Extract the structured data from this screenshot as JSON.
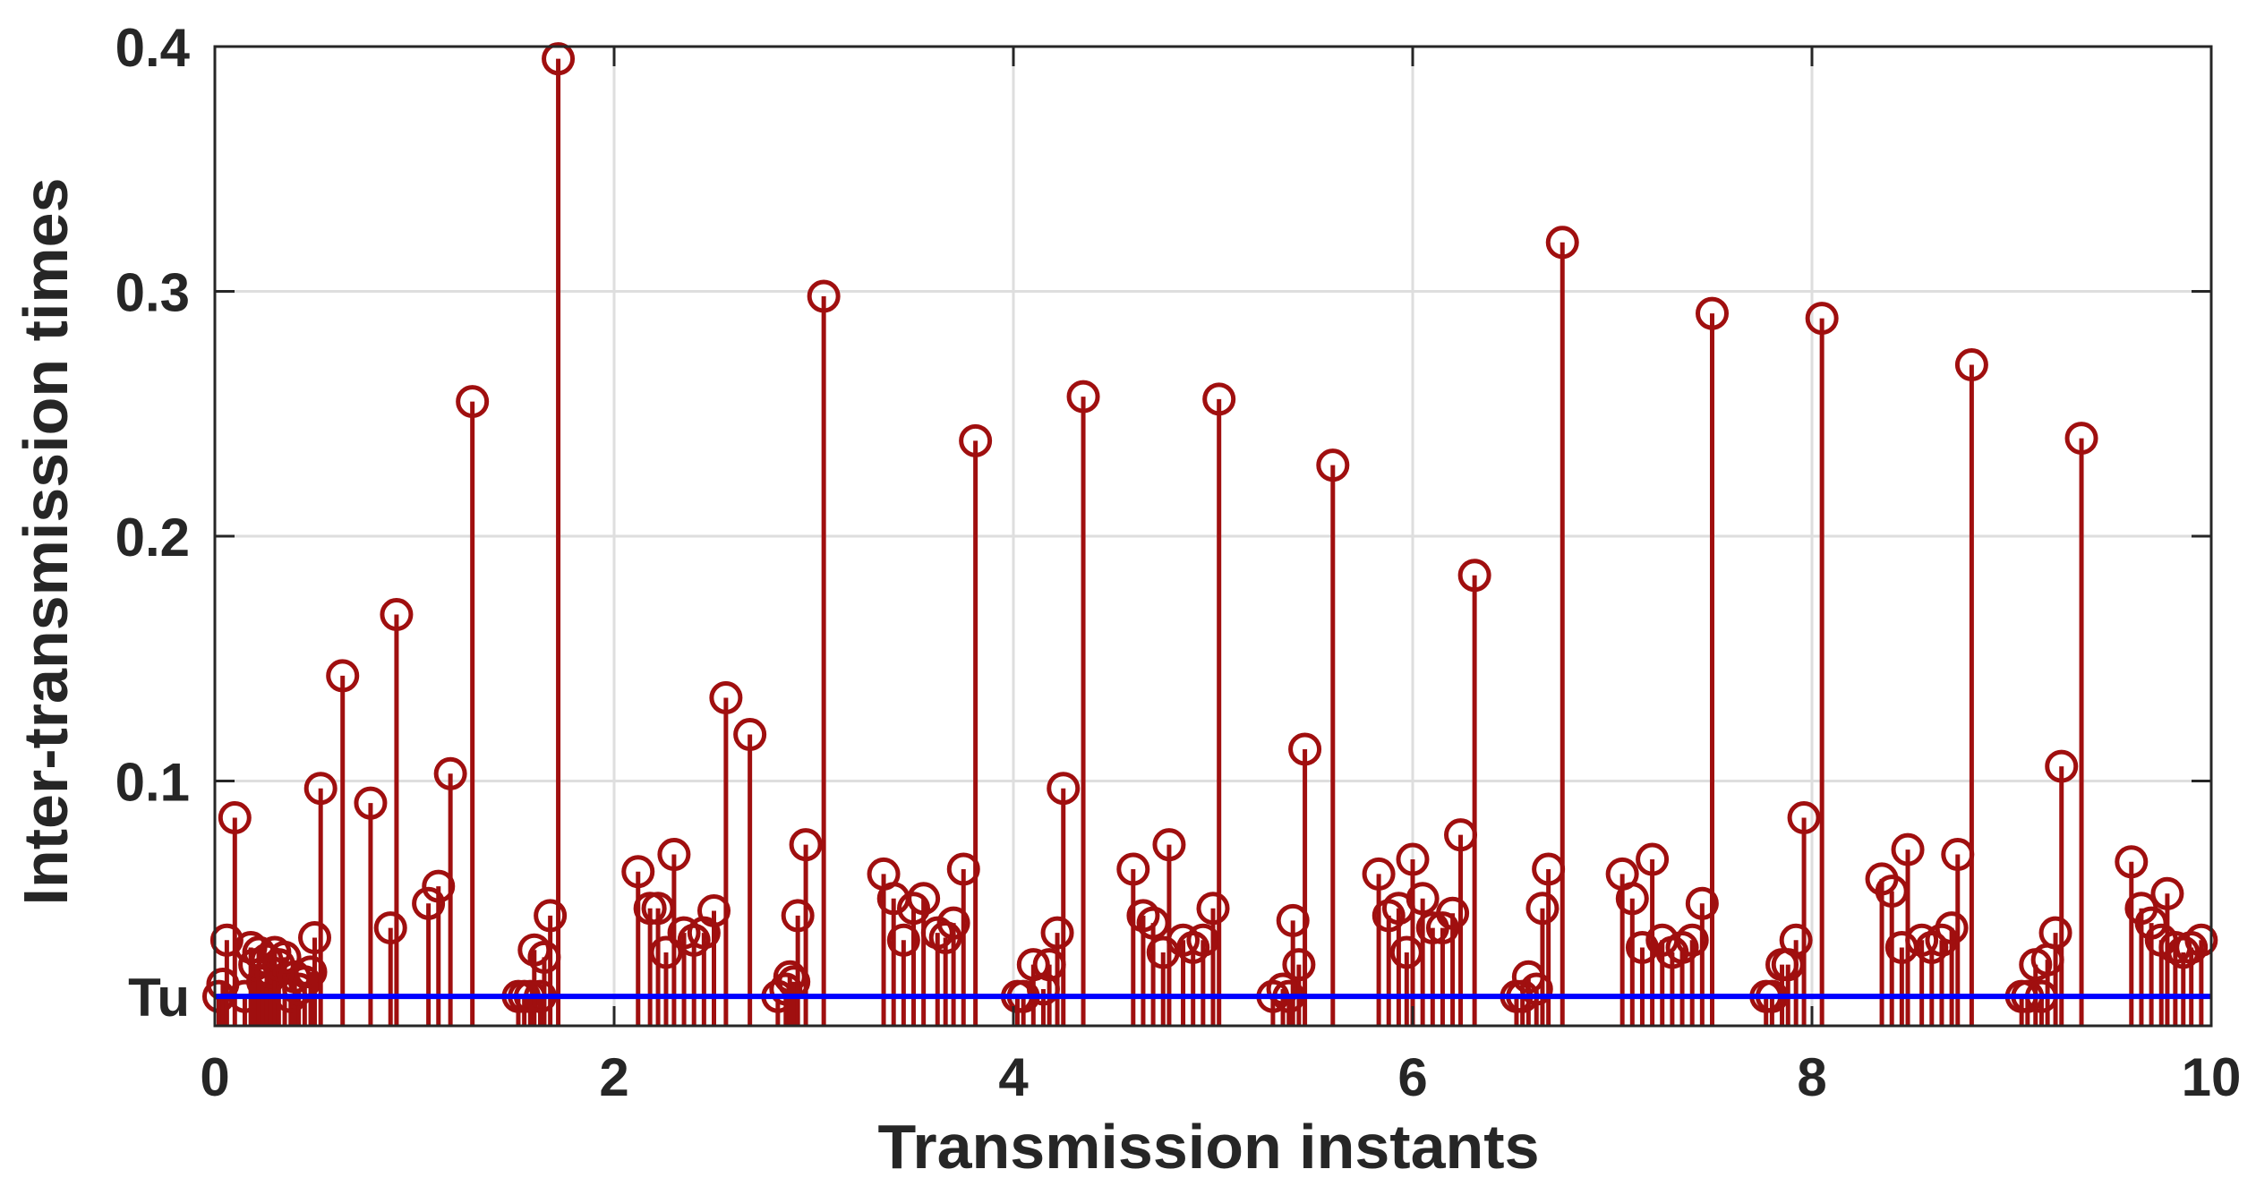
{
  "chart_data": {
    "type": "stem",
    "xlabel": "Transmission instants",
    "ylabel": "Inter-transmission times",
    "xlim": [
      0,
      10
    ],
    "ylim": [
      0,
      0.4
    ],
    "grid": true,
    "xticks": [
      0,
      2,
      4,
      6,
      8,
      10
    ],
    "xtick_labels": [
      "0",
      "2",
      "4",
      "6",
      "8",
      "10"
    ],
    "yticks": [
      0.1,
      0.2,
      0.3,
      0.4
    ],
    "ytick_labels": [
      "0.1",
      "0.2",
      "0.3",
      "0.4"
    ],
    "reference_line": {
      "label": "Tu",
      "value": 0.012,
      "color": "#0000ff"
    },
    "stem_color": "#a00f0f",
    "series": [
      {
        "name": "inter-transmission times",
        "points": [
          [
            0.02,
            0.012
          ],
          [
            0.04,
            0.017
          ],
          [
            0.06,
            0.035
          ],
          [
            0.1,
            0.085
          ],
          [
            0.15,
            0.012
          ],
          [
            0.18,
            0.032
          ],
          [
            0.2,
            0.025
          ],
          [
            0.22,
            0.03
          ],
          [
            0.24,
            0.018
          ],
          [
            0.26,
            0.027
          ],
          [
            0.28,
            0.022
          ],
          [
            0.3,
            0.03
          ],
          [
            0.32,
            0.025
          ],
          [
            0.35,
            0.028
          ],
          [
            0.38,
            0.012
          ],
          [
            0.4,
            0.02
          ],
          [
            0.42,
            0.015
          ],
          [
            0.45,
            0.018
          ],
          [
            0.48,
            0.022
          ],
          [
            0.5,
            0.036
          ],
          [
            0.53,
            0.097
          ],
          [
            0.64,
            0.143
          ],
          [
            0.78,
            0.091
          ],
          [
            0.88,
            0.04
          ],
          [
            0.91,
            0.168
          ],
          [
            1.07,
            0.05
          ],
          [
            1.12,
            0.057
          ],
          [
            1.18,
            0.103
          ],
          [
            1.29,
            0.255
          ],
          [
            1.52,
            0.012
          ],
          [
            1.55,
            0.012
          ],
          [
            1.58,
            0.012
          ],
          [
            1.6,
            0.031
          ],
          [
            1.63,
            0.012
          ],
          [
            1.65,
            0.028
          ],
          [
            1.68,
            0.045
          ],
          [
            1.72,
            0.395
          ],
          [
            2.12,
            0.063
          ],
          [
            2.18,
            0.048
          ],
          [
            2.22,
            0.048
          ],
          [
            2.26,
            0.03
          ],
          [
            2.3,
            0.07
          ],
          [
            2.35,
            0.038
          ],
          [
            2.4,
            0.035
          ],
          [
            2.45,
            0.038
          ],
          [
            2.5,
            0.047
          ],
          [
            2.56,
            0.134
          ],
          [
            2.68,
            0.119
          ],
          [
            2.82,
            0.012
          ],
          [
            2.86,
            0.015
          ],
          [
            2.88,
            0.02
          ],
          [
            2.9,
            0.018
          ],
          [
            2.92,
            0.045
          ],
          [
            2.96,
            0.074
          ],
          [
            3.05,
            0.298
          ],
          [
            3.35,
            0.062
          ],
          [
            3.4,
            0.052
          ],
          [
            3.45,
            0.035
          ],
          [
            3.5,
            0.048
          ],
          [
            3.55,
            0.052
          ],
          [
            3.62,
            0.038
          ],
          [
            3.66,
            0.036
          ],
          [
            3.7,
            0.042
          ],
          [
            3.75,
            0.064
          ],
          [
            3.81,
            0.239
          ],
          [
            4.02,
            0.012
          ],
          [
            4.05,
            0.012
          ],
          [
            4.1,
            0.025
          ],
          [
            4.15,
            0.015
          ],
          [
            4.18,
            0.025
          ],
          [
            4.22,
            0.038
          ],
          [
            4.25,
            0.097
          ],
          [
            4.35,
            0.257
          ],
          [
            4.6,
            0.064
          ],
          [
            4.65,
            0.045
          ],
          [
            4.7,
            0.042
          ],
          [
            4.75,
            0.03
          ],
          [
            4.78,
            0.074
          ],
          [
            4.85,
            0.035
          ],
          [
            4.9,
            0.032
          ],
          [
            4.95,
            0.035
          ],
          [
            5.0,
            0.048
          ],
          [
            5.03,
            0.256
          ],
          [
            5.3,
            0.012
          ],
          [
            5.35,
            0.015
          ],
          [
            5.38,
            0.012
          ],
          [
            5.4,
            0.043
          ],
          [
            5.43,
            0.025
          ],
          [
            5.46,
            0.113
          ],
          [
            5.6,
            0.229
          ],
          [
            5.83,
            0.062
          ],
          [
            5.88,
            0.045
          ],
          [
            5.93,
            0.048
          ],
          [
            5.97,
            0.03
          ],
          [
            6.0,
            0.068
          ],
          [
            6.05,
            0.052
          ],
          [
            6.1,
            0.04
          ],
          [
            6.15,
            0.04
          ],
          [
            6.2,
            0.046
          ],
          [
            6.24,
            0.078
          ],
          [
            6.31,
            0.184
          ],
          [
            6.52,
            0.012
          ],
          [
            6.55,
            0.012
          ],
          [
            6.58,
            0.02
          ],
          [
            6.62,
            0.015
          ],
          [
            6.65,
            0.048
          ],
          [
            6.68,
            0.064
          ],
          [
            6.75,
            0.32
          ],
          [
            7.05,
            0.062
          ],
          [
            7.1,
            0.052
          ],
          [
            7.15,
            0.032
          ],
          [
            7.2,
            0.068
          ],
          [
            7.25,
            0.035
          ],
          [
            7.3,
            0.03
          ],
          [
            7.35,
            0.032
          ],
          [
            7.4,
            0.035
          ],
          [
            7.45,
            0.05
          ],
          [
            7.5,
            0.291
          ],
          [
            7.77,
            0.012
          ],
          [
            7.8,
            0.012
          ],
          [
            7.85,
            0.025
          ],
          [
            7.88,
            0.025
          ],
          [
            7.92,
            0.035
          ],
          [
            7.96,
            0.085
          ],
          [
            8.05,
            0.289
          ],
          [
            8.35,
            0.06
          ],
          [
            8.4,
            0.055
          ],
          [
            8.45,
            0.032
          ],
          [
            8.48,
            0.072
          ],
          [
            8.55,
            0.035
          ],
          [
            8.6,
            0.032
          ],
          [
            8.65,
            0.035
          ],
          [
            8.7,
            0.04
          ],
          [
            8.73,
            0.07
          ],
          [
            8.8,
            0.27
          ],
          [
            9.05,
            0.012
          ],
          [
            9.08,
            0.012
          ],
          [
            9.12,
            0.025
          ],
          [
            9.15,
            0.012
          ],
          [
            9.18,
            0.027
          ],
          [
            9.22,
            0.038
          ],
          [
            9.25,
            0.106
          ],
          [
            9.35,
            0.24
          ],
          [
            9.6,
            0.067
          ],
          [
            9.65,
            0.048
          ],
          [
            9.7,
            0.042
          ],
          [
            9.75,
            0.035
          ],
          [
            9.78,
            0.054
          ],
          [
            9.82,
            0.032
          ],
          [
            9.86,
            0.03
          ],
          [
            9.9,
            0.032
          ],
          [
            9.95,
            0.035
          ]
        ]
      }
    ]
  }
}
